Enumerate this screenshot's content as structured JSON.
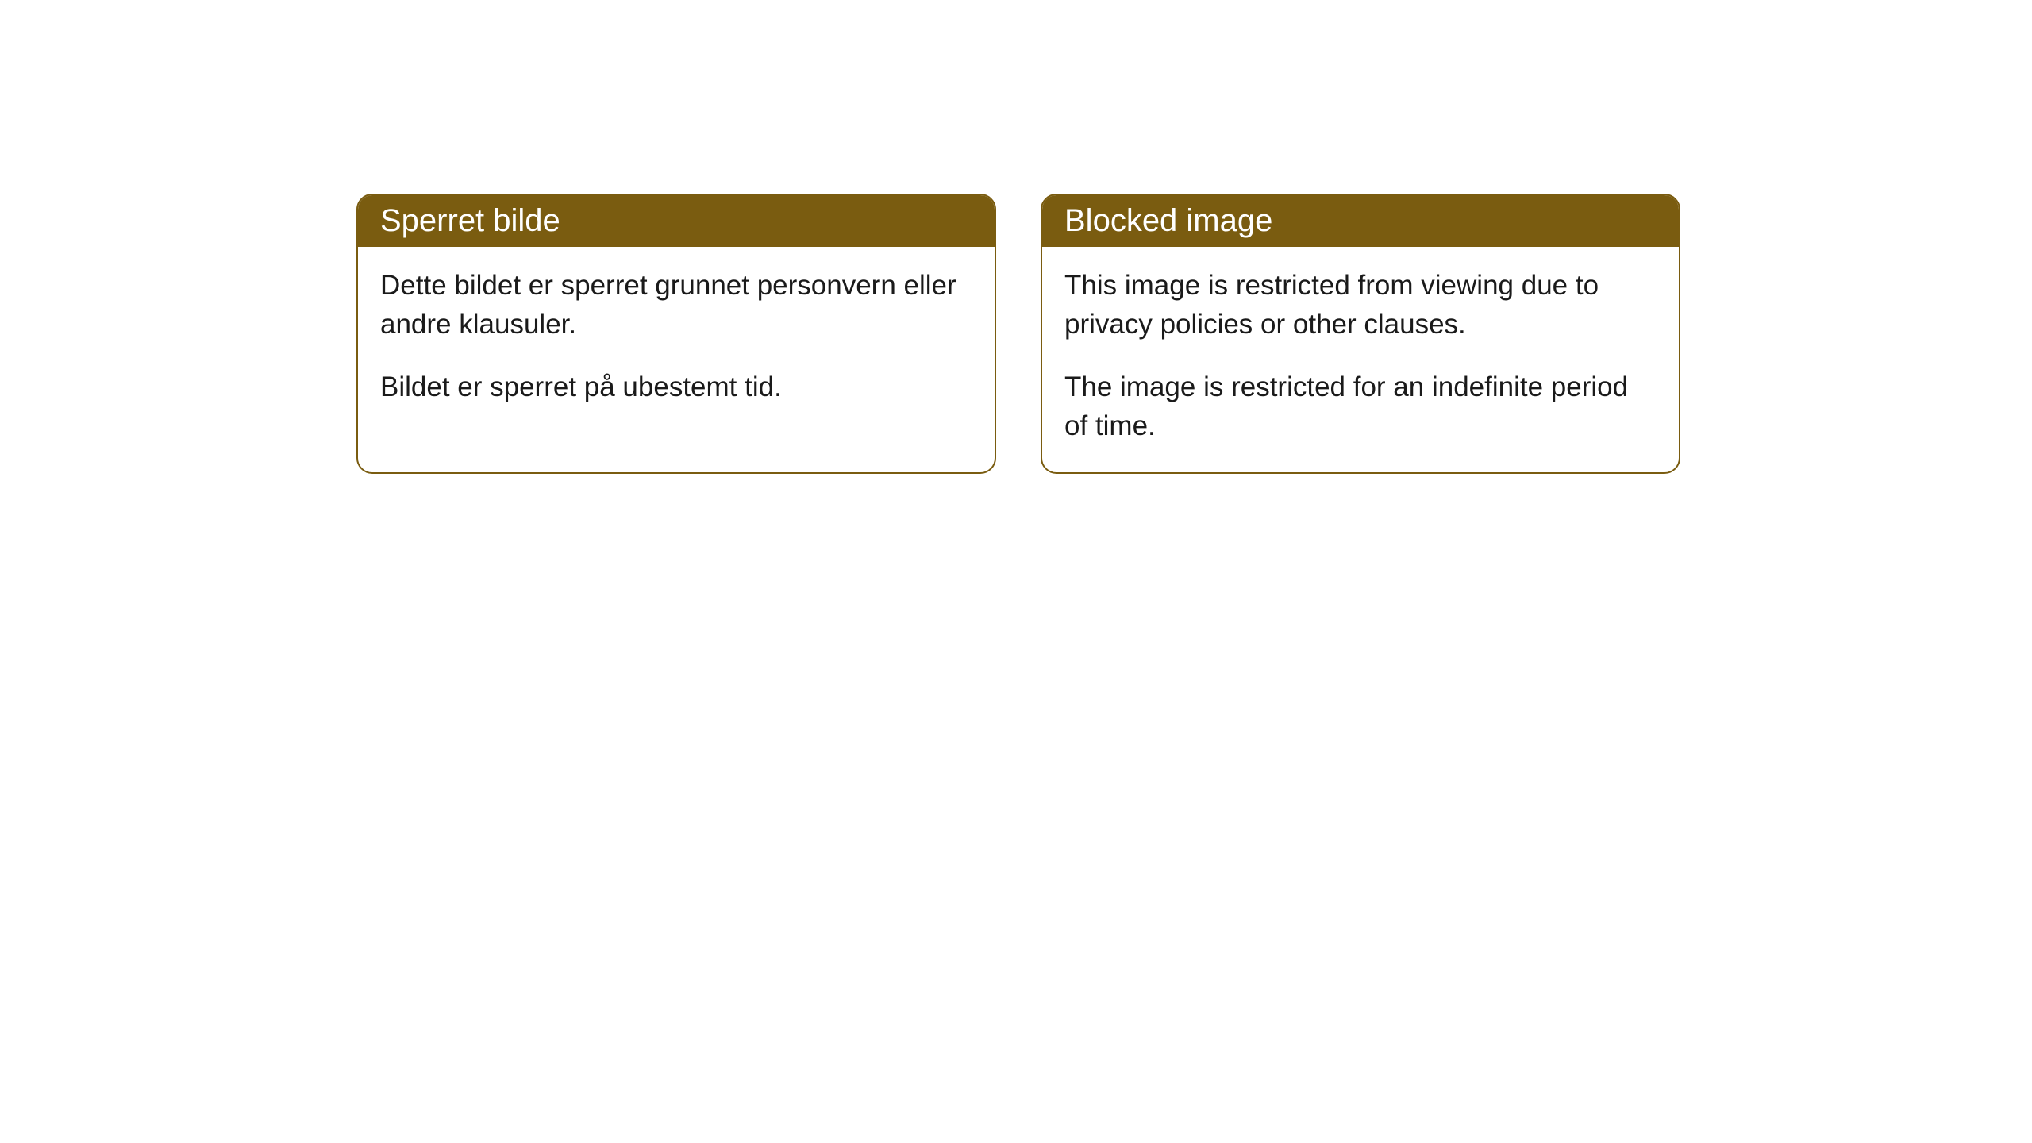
{
  "cards": [
    {
      "title": "Sperret bilde",
      "paragraph1": "Dette bildet er sperret grunnet personvern eller andre klausuler.",
      "paragraph2": "Bildet er sperret på ubestemt tid."
    },
    {
      "title": "Blocked image",
      "paragraph1": "This image is restricted from viewing due to privacy policies or other clauses.",
      "paragraph2": "The image is restricted for an indefinite period of time."
    }
  ],
  "styles": {
    "header_bg_color": "#7a5c10",
    "header_text_color": "#ffffff",
    "border_color": "#7a5c10",
    "body_bg_color": "#ffffff",
    "body_text_color": "#1a1a1a",
    "border_radius": 20,
    "header_fontsize": 40,
    "body_fontsize": 35
  }
}
